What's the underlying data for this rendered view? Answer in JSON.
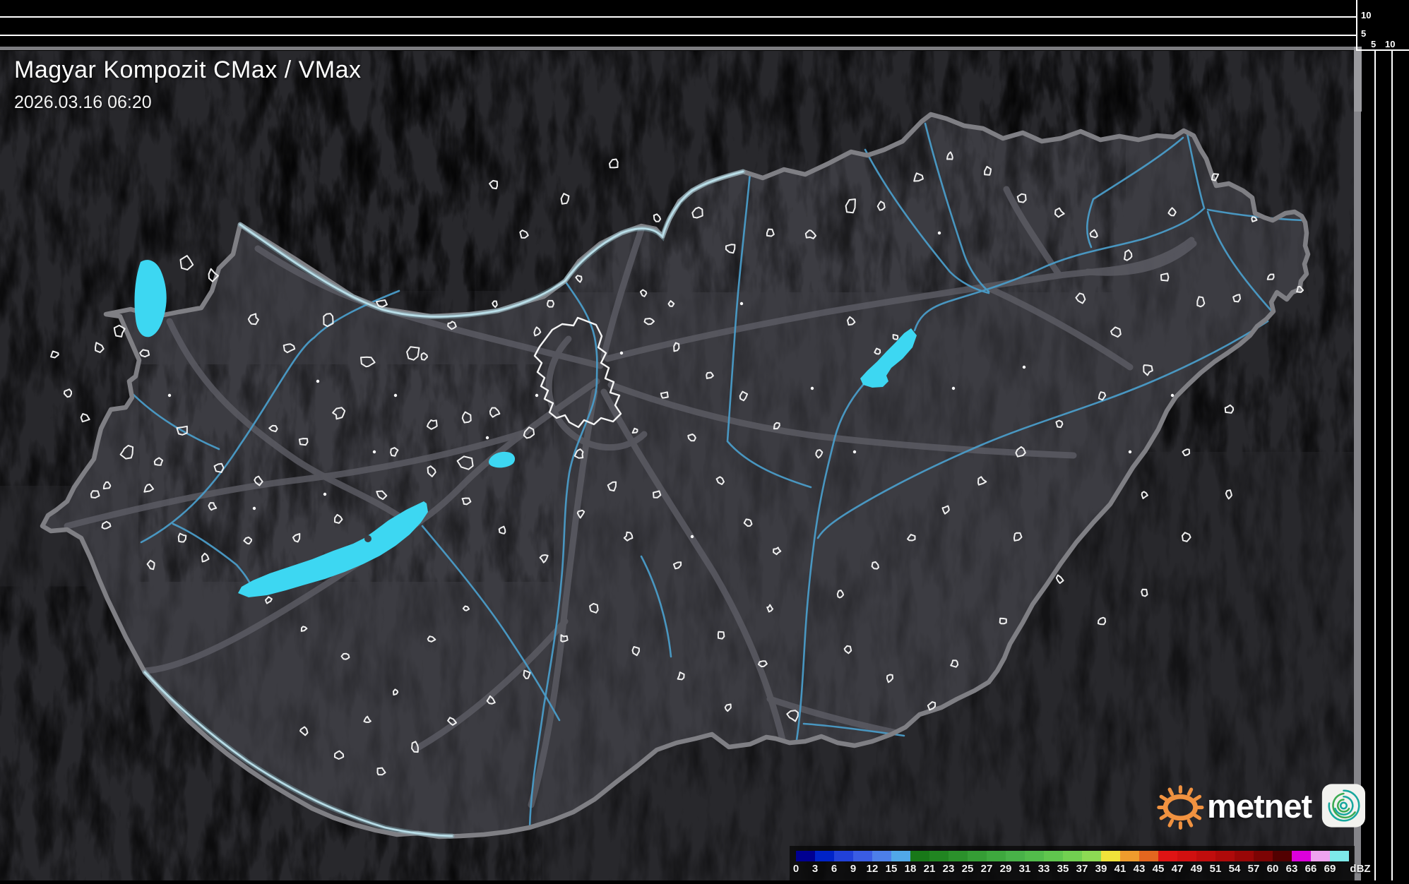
{
  "header": {
    "title": "Magyar Kompozit CMax / VMax",
    "timestamp": "2026.03.16 06:20"
  },
  "vertical_axes": {
    "top_panel_km_labels": [
      "10",
      "5"
    ],
    "right_panel_km_labels": [
      "5",
      "10"
    ]
  },
  "legend": {
    "unit_label": "dBZ",
    "tick_labels": [
      "0",
      "3",
      "6",
      "9",
      "12",
      "15",
      "18",
      "21",
      "23",
      "25",
      "27",
      "29",
      "31",
      "33",
      "35",
      "37",
      "39",
      "41",
      "43",
      "45",
      "47",
      "49",
      "51",
      "54",
      "57",
      "60",
      "63",
      "66",
      "69"
    ],
    "segment_colors": [
      "#000091",
      "#0023c8",
      "#2141d9",
      "#3a5ce3",
      "#4d7fe9",
      "#51a8e8",
      "#187818",
      "#218521",
      "#2b912b",
      "#359d35",
      "#3ea83e",
      "#48b248",
      "#52bc4b",
      "#60c64e",
      "#72d051",
      "#8dda54",
      "#f0e23a",
      "#ef9c2d",
      "#e4661f",
      "#df1414",
      "#d11010",
      "#c10d0d",
      "#af0a0a",
      "#990707",
      "#7c0404",
      "#520101",
      "#dc00dc",
      "#efa3ef",
      "#7de9e9"
    ]
  },
  "branding": {
    "logo_text": "metnet",
    "sun_color": "#f19240",
    "icon_teal": "#18a79e",
    "icon_green": "#3aaa52"
  },
  "map": {
    "country": "Hungary",
    "land_color": "#3c3c42",
    "outside_color": "#28282c",
    "border_color": "#7f7f84",
    "river_color": "#4a9cc8",
    "border_river_color": "#aad8e4",
    "road_color": "#5c5c64",
    "lake_color": "#3dd7f2",
    "city_outline_color": "#f0f0f0"
  }
}
